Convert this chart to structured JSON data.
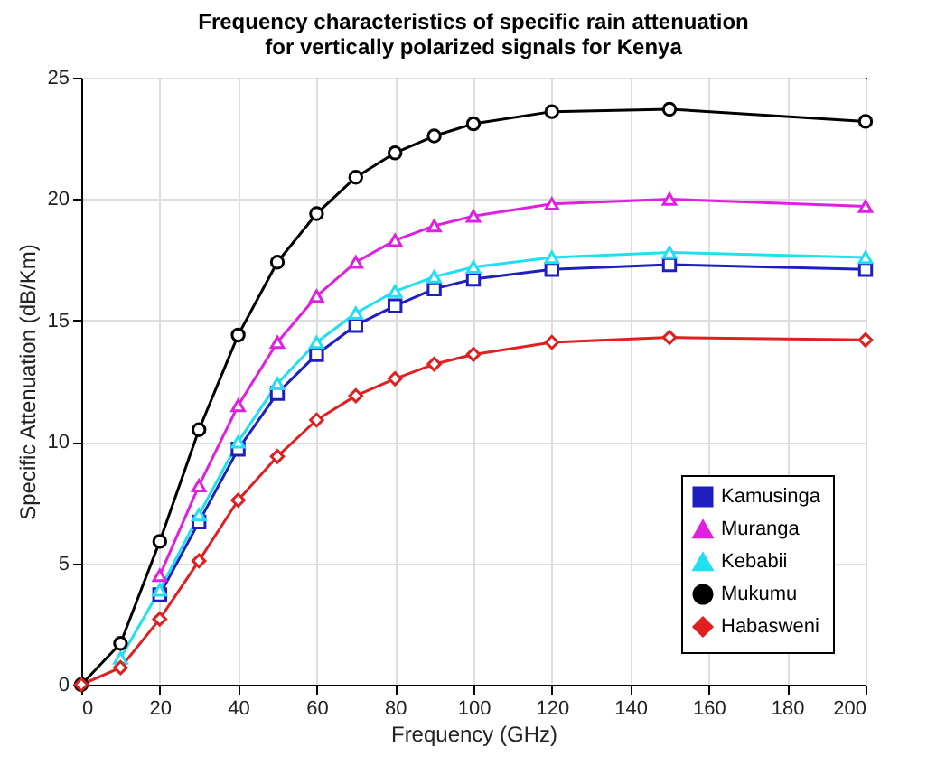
{
  "chart_data": {
    "type": "line",
    "title": "Frequency characteristics of specific rain attenuation\nfor vertically polarized signals for Kenya",
    "xlabel": "Frequency (GHz)",
    "ylabel": "Specific Attenuation (dB/Km)",
    "x": [
      0,
      10,
      20,
      30,
      40,
      50,
      60,
      70,
      80,
      90,
      100,
      120,
      150,
      200
    ],
    "xlim": [
      0,
      200
    ],
    "xticks": [
      0,
      20,
      40,
      60,
      80,
      100,
      120,
      140,
      160,
      180,
      200
    ],
    "ylim": [
      0,
      25
    ],
    "yticks": [
      0,
      5,
      10,
      15,
      20,
      25
    ],
    "grid": true,
    "legend": "bottom right",
    "line_style": "solid",
    "series": [
      {
        "name": "Kamusinga",
        "color": "#1f1fbf",
        "marker": "square",
        "values": [
          null,
          null,
          3.7,
          6.7,
          9.7,
          12.0,
          13.6,
          14.8,
          15.6,
          16.3,
          16.7,
          17.1,
          17.3,
          17.1
        ]
      },
      {
        "name": "Muranga",
        "color": "#e020e0",
        "marker": "triangle",
        "values": [
          null,
          null,
          4.5,
          8.2,
          11.5,
          14.1,
          16.0,
          17.4,
          18.3,
          18.9,
          19.3,
          19.8,
          20.0,
          19.7
        ]
      },
      {
        "name": "Kebabii",
        "color": "#20e0f0",
        "marker": "triangle",
        "values": [
          null,
          1.1,
          3.9,
          7.0,
          10.0,
          12.4,
          14.1,
          15.3,
          16.2,
          16.8,
          17.2,
          17.6,
          17.8,
          17.6
        ]
      },
      {
        "name": "Mukumu",
        "color": "#000000",
        "marker": "circle",
        "values": [
          0,
          1.7,
          5.9,
          10.5,
          14.4,
          17.4,
          19.4,
          20.9,
          21.9,
          22.6,
          23.1,
          23.6,
          23.7,
          23.2
        ]
      },
      {
        "name": "Habasweni",
        "color": "#e02020",
        "marker": "diamond",
        "values": [
          0,
          0.7,
          2.7,
          5.1,
          7.6,
          9.4,
          10.9,
          11.9,
          12.6,
          13.2,
          13.6,
          14.1,
          14.3,
          14.2
        ]
      }
    ]
  }
}
